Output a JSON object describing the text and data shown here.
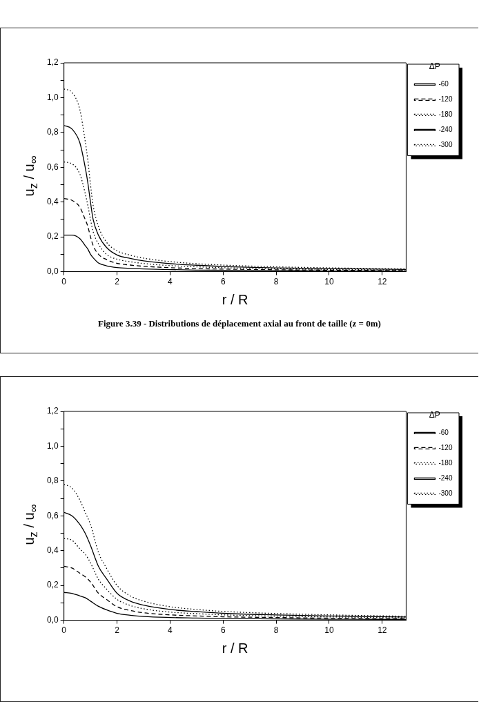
{
  "chart_data": [
    {
      "type": "line",
      "xlabel": "r / R",
      "ylabel": "u$_{z}$ / u$_{∞}$",
      "legend_title": "ΔP",
      "legend": "right",
      "marker": "none",
      "grid": false,
      "annotations": [
        "Figure 3.39 - Distributions de déplacement axial au front de taille (z = 0m)"
      ],
      "xlim": [
        0,
        12.9
      ],
      "xticks": [
        0,
        2,
        4,
        6,
        8,
        10,
        12
      ],
      "ylim": [
        0,
        1.2
      ],
      "yticks": [
        {
          "value": 0,
          "label": "0,0"
        },
        {
          "value": 0.1,
          "label": null
        },
        {
          "value": 0.2,
          "label": "0,2"
        },
        {
          "value": 0.3,
          "label": null
        },
        {
          "value": 0.4,
          "label": "0,4"
        },
        {
          "value": 0.5,
          "label": null
        },
        {
          "value": 0.6,
          "label": "0,6"
        },
        {
          "value": 0.7,
          "label": null
        },
        {
          "value": 0.8,
          "label": "0,8"
        },
        {
          "value": 0.9,
          "label": null
        },
        {
          "value": 1.0,
          "label": "1,0"
        },
        {
          "value": 1.1,
          "label": null
        },
        {
          "value": 1.2,
          "label": "1,2"
        }
      ],
      "x": [
        0,
        0.3,
        0.6,
        0.8,
        0.9,
        1.0,
        1.1,
        1.3,
        1.6,
        2,
        2.5,
        3,
        4,
        5,
        6,
        8,
        10,
        12.9
      ],
      "series": [
        {
          "name": "-60",
          "color": "#000000",
          "line_style": "solid",
          "values": [
            0.21,
            0.21,
            0.19,
            0.15,
            0.13,
            0.1,
            0.08,
            0.05,
            0.034,
            0.024,
            0.019,
            0.016,
            0.012,
            0.009,
            0.008,
            0.006,
            0.004,
            0.003
          ]
        },
        {
          "name": "-120",
          "color": "#000000",
          "line_style": "dashed",
          "values": [
            0.42,
            0.41,
            0.37,
            0.3,
            0.26,
            0.2,
            0.15,
            0.1,
            0.07,
            0.048,
            0.038,
            0.031,
            0.023,
            0.018,
            0.015,
            0.011,
            0.009,
            0.006
          ]
        },
        {
          "name": "-180",
          "color": "#000000",
          "line_style": "dotted",
          "values": [
            0.63,
            0.62,
            0.56,
            0.45,
            0.38,
            0.3,
            0.23,
            0.16,
            0.1,
            0.072,
            0.057,
            0.047,
            0.035,
            0.028,
            0.023,
            0.017,
            0.013,
            0.01
          ]
        },
        {
          "name": "-240",
          "color": "#000000",
          "line_style": "solid",
          "values": [
            0.84,
            0.82,
            0.74,
            0.6,
            0.51,
            0.4,
            0.3,
            0.21,
            0.14,
            0.096,
            0.076,
            0.062,
            0.046,
            0.037,
            0.03,
            0.022,
            0.018,
            0.013
          ]
        },
        {
          "name": "-300",
          "color": "#000000",
          "line_style": "dotted",
          "values": [
            1.05,
            1.03,
            0.93,
            0.75,
            0.64,
            0.5,
            0.38,
            0.26,
            0.17,
            0.12,
            0.095,
            0.078,
            0.058,
            0.046,
            0.038,
            0.028,
            0.022,
            0.016
          ]
        }
      ]
    },
    {
      "type": "line",
      "xlabel": "r / R",
      "ylabel": "u$_{z}$ / u$_{∞}$",
      "legend_title": "ΔP",
      "legend": "right",
      "marker": "none",
      "grid": false,
      "xlim": [
        0,
        12.9
      ],
      "xticks": [
        0,
        2,
        4,
        6,
        8,
        10,
        12
      ],
      "ylim": [
        0,
        1.2
      ],
      "yticks": [
        {
          "value": 0,
          "label": "0,0"
        },
        {
          "value": 0.1,
          "label": null
        },
        {
          "value": 0.2,
          "label": "0,2"
        },
        {
          "value": 0.3,
          "label": null
        },
        {
          "value": 0.4,
          "label": "0,4"
        },
        {
          "value": 0.5,
          "label": null
        },
        {
          "value": 0.6,
          "label": "0,6"
        },
        {
          "value": 0.7,
          "label": null
        },
        {
          "value": 0.8,
          "label": "0,8"
        },
        {
          "value": 0.9,
          "label": null
        },
        {
          "value": 1.0,
          "label": "1,0"
        },
        {
          "value": 1.1,
          "label": null
        },
        {
          "value": 1.2,
          "label": "1,2"
        }
      ],
      "x": [
        0,
        0.3,
        0.6,
        0.8,
        1.0,
        1.3,
        1.6,
        2,
        2.5,
        3,
        4,
        5,
        6,
        8,
        10,
        12.9
      ],
      "series": [
        {
          "name": "-60",
          "color": "#000000",
          "line_style": "solid",
          "values": [
            0.16,
            0.155,
            0.14,
            0.13,
            0.11,
            0.08,
            0.06,
            0.04,
            0.029,
            0.022,
            0.016,
            0.013,
            0.01,
            0.008,
            0.006,
            0.005
          ]
        },
        {
          "name": "-120",
          "color": "#000000",
          "line_style": "dashed",
          "values": [
            0.31,
            0.3,
            0.27,
            0.25,
            0.22,
            0.155,
            0.12,
            0.078,
            0.056,
            0.043,
            0.031,
            0.025,
            0.02,
            0.016,
            0.012,
            0.009
          ]
        },
        {
          "name": "-180",
          "color": "#000000",
          "line_style": "dotted",
          "values": [
            0.47,
            0.46,
            0.41,
            0.38,
            0.33,
            0.235,
            0.18,
            0.12,
            0.085,
            0.066,
            0.047,
            0.038,
            0.031,
            0.024,
            0.019,
            0.014
          ]
        },
        {
          "name": "-240",
          "color": "#000000",
          "line_style": "solid",
          "values": [
            0.62,
            0.6,
            0.55,
            0.5,
            0.43,
            0.31,
            0.24,
            0.155,
            0.11,
            0.087,
            0.062,
            0.05,
            0.04,
            0.031,
            0.025,
            0.019
          ]
        },
        {
          "name": "-300",
          "color": "#000000",
          "line_style": "dotted",
          "values": [
            0.78,
            0.76,
            0.69,
            0.62,
            0.55,
            0.39,
            0.3,
            0.2,
            0.14,
            0.11,
            0.078,
            0.062,
            0.051,
            0.039,
            0.031,
            0.023
          ]
        }
      ]
    }
  ]
}
